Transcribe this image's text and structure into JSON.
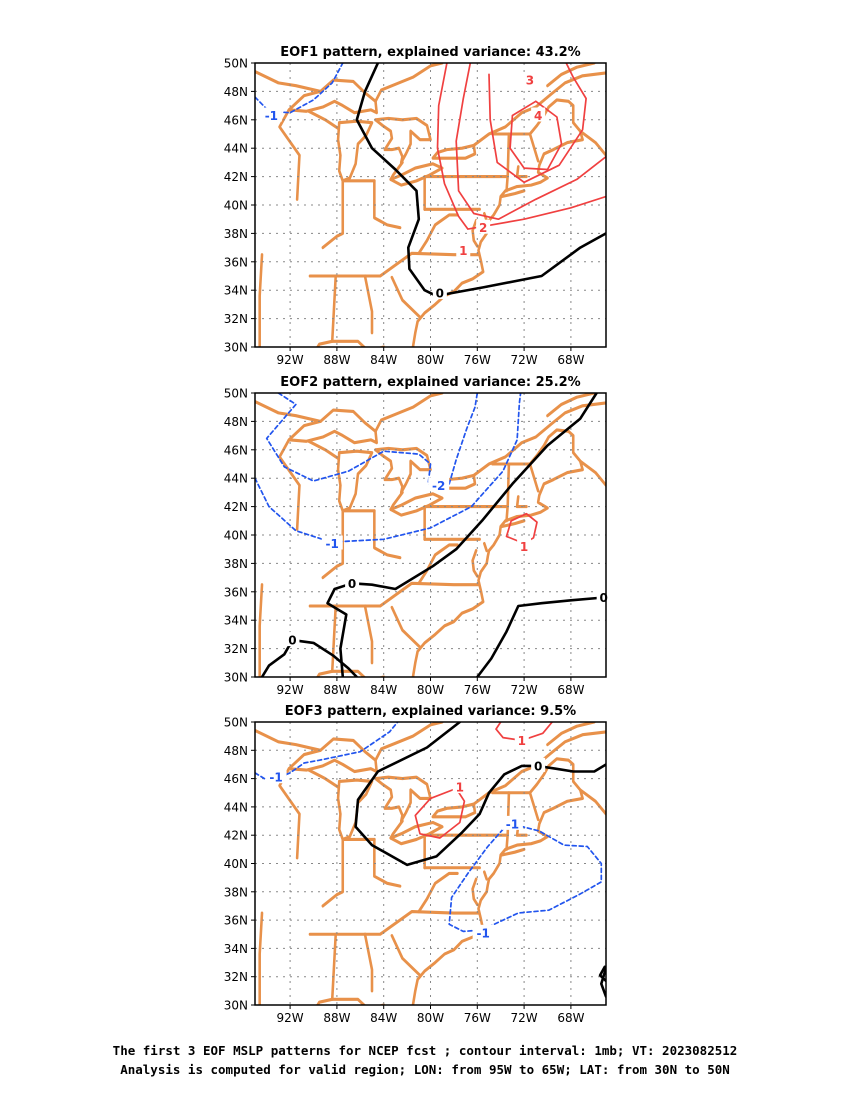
{
  "caption": {
    "line1": "The first 3 EOF MSLP patterns for NCEP fcst ; contour interval: 1mb; VT: 2023082512",
    "line2": "Analysis is computed for valid region; LON: from 95W to 65W; LAT: from 30N to 50N"
  },
  "colors": {
    "positive_contour": "#f04040",
    "negative_contour": "#2255ee",
    "zero_contour": "#000000",
    "coastline": "#e8914a",
    "grid": "#888888"
  },
  "chart_data": [
    {
      "type": "contour-map",
      "title": "EOF1 pattern, explained variance: 43.2%",
      "lon_range": [
        -95,
        -65
      ],
      "lat_range": [
        30,
        50
      ],
      "lon_ticks": [
        "92W",
        "88W",
        "84W",
        "80W",
        "76W",
        "72W",
        "68W"
      ],
      "lat_ticks": [
        "30N",
        "32N",
        "34N",
        "36N",
        "38N",
        "40N",
        "42N",
        "44N",
        "46N",
        "48N",
        "50N"
      ],
      "grid": true,
      "contour_labels": [
        {
          "value": "-1",
          "lon": -93.6,
          "lat": 46.3,
          "sign": "neg"
        },
        {
          "value": "0",
          "lon": -79.2,
          "lat": 33.8,
          "sign": "zero"
        },
        {
          "value": "1",
          "lon": -77.2,
          "lat": 36.8,
          "sign": "pos"
        },
        {
          "value": "2",
          "lon": -75.5,
          "lat": 38.4,
          "sign": "pos"
        },
        {
          "value": "3",
          "lon": -71.5,
          "lat": 48.8,
          "sign": "pos"
        },
        {
          "value": "4",
          "lon": -70.8,
          "lat": 46.3,
          "sign": "pos"
        }
      ],
      "contours": [
        {
          "sign": "neg",
          "points": [
            [
              -95,
              47.6
            ],
            [
              -93.8,
              46.6
            ],
            [
              -92,
              46.5
            ],
            [
              -90,
              47.4
            ],
            [
              -88.4,
              48.6
            ],
            [
              -87.5,
              50
            ]
          ]
        },
        {
          "sign": "zero",
          "points": [
            [
              -84.5,
              50
            ],
            [
              -85.6,
              48
            ],
            [
              -86.3,
              46
            ],
            [
              -85,
              44
            ],
            [
              -83,
              42.5
            ],
            [
              -81.2,
              41
            ],
            [
              -81,
              39
            ],
            [
              -81.9,
              37
            ],
            [
              -81.8,
              35.5
            ],
            [
              -80.5,
              34
            ],
            [
              -79.5,
              33.6
            ],
            [
              -75.5,
              34.2
            ],
            [
              -70.5,
              35
            ],
            [
              -67.2,
              37
            ],
            [
              -65,
              38
            ]
          ]
        },
        {
          "sign": "pos",
          "points": [
            [
              -78.6,
              50
            ],
            [
              -79.3,
              47
            ],
            [
              -79.4,
              44
            ],
            [
              -78.8,
              41.5
            ],
            [
              -77.6,
              39.2
            ],
            [
              -76.8,
              38.3
            ],
            [
              -72,
              39
            ],
            [
              -68,
              39.8
            ],
            [
              -65,
              40.6
            ]
          ]
        },
        {
          "sign": "pos",
          "points": [
            [
              -76.6,
              50
            ],
            [
              -77.2,
              47.5
            ],
            [
              -77.8,
              44.5
            ],
            [
              -77.6,
              41
            ],
            [
              -76.3,
              39.4
            ],
            [
              -74.2,
              39
            ],
            [
              -71,
              40.4
            ],
            [
              -67.5,
              41.8
            ],
            [
              -65,
              43.4
            ]
          ]
        },
        {
          "sign": "pos",
          "points": [
            [
              -75,
              49.2
            ],
            [
              -74.9,
              46
            ],
            [
              -74.3,
              43
            ],
            [
              -72,
              41.6
            ],
            [
              -69,
              42.8
            ],
            [
              -67,
              45.3
            ],
            [
              -66.7,
              47.5
            ],
            [
              -67.8,
              49
            ],
            [
              -68.4,
              50
            ]
          ]
        },
        {
          "sign": "pos",
          "points": [
            [
              -71,
              47.3
            ],
            [
              -73,
              46.3
            ],
            [
              -73.2,
              44
            ],
            [
              -72,
              42.6
            ],
            [
              -70,
              42.5
            ],
            [
              -68.8,
              44.3
            ],
            [
              -69.2,
              46.2
            ],
            [
              -71,
              47.3
            ]
          ]
        }
      ]
    },
    {
      "type": "contour-map",
      "title": "EOF2 pattern, explained variance: 25.2%",
      "lon_range": [
        -95,
        -65
      ],
      "lat_range": [
        30,
        50
      ],
      "lon_ticks": [
        "92W",
        "88W",
        "84W",
        "80W",
        "76W",
        "72W",
        "68W"
      ],
      "lat_ticks": [
        "30N",
        "32N",
        "34N",
        "36N",
        "38N",
        "40N",
        "42N",
        "44N",
        "46N",
        "48N",
        "50N"
      ],
      "grid": true,
      "contour_labels": [
        {
          "value": "-2",
          "lon": -79.3,
          "lat": 43.5,
          "sign": "neg"
        },
        {
          "value": "-1",
          "lon": -88.4,
          "lat": 39.4,
          "sign": "neg"
        },
        {
          "value": "0",
          "lon": -86.7,
          "lat": 36.6,
          "sign": "zero"
        },
        {
          "value": "0",
          "lon": -91.8,
          "lat": 32.6,
          "sign": "zero"
        },
        {
          "value": "0",
          "lon": -65.2,
          "lat": 35.6,
          "sign": "zero"
        },
        {
          "value": "1",
          "lon": -72,
          "lat": 39.2,
          "sign": "pos"
        }
      ],
      "contours": [
        {
          "sign": "neg",
          "points": [
            [
              -93,
              50
            ],
            [
              -91.5,
              49.2
            ],
            [
              -94,
              46.8
            ],
            [
              -92.5,
              44.8
            ],
            [
              -90,
              43.8
            ],
            [
              -87,
              44.5
            ],
            [
              -84,
              45.9
            ],
            [
              -81,
              45.7
            ],
            [
              -80,
              45
            ],
            [
              -80.2,
              43.6
            ],
            [
              -79.6,
              43.4
            ]
          ]
        },
        {
          "sign": "neg",
          "points": [
            [
              -79.6,
              43.4
            ],
            [
              -78.4,
              43.6
            ],
            [
              -77.8,
              45.3
            ],
            [
              -76.9,
              47.5
            ],
            [
              -76.2,
              49
            ],
            [
              -76,
              50
            ]
          ]
        },
        {
          "sign": "neg",
          "points": [
            [
              -95,
              44
            ],
            [
              -93.8,
              42
            ],
            [
              -91.5,
              40.3
            ],
            [
              -88.5,
              39.5
            ],
            [
              -84,
              39.7
            ],
            [
              -80,
              40.5
            ],
            [
              -76.5,
              42
            ],
            [
              -73.8,
              44.5
            ],
            [
              -72.6,
              46.7
            ],
            [
              -72.4,
              49.3
            ],
            [
              -72.3,
              50
            ]
          ]
        },
        {
          "sign": "zero",
          "points": [
            [
              -94.4,
              30
            ],
            [
              -93.8,
              30.8
            ],
            [
              -92.5,
              31.6
            ],
            [
              -91.8,
              32.6
            ],
            [
              -90,
              32.4
            ],
            [
              -88.3,
              31.5
            ],
            [
              -87,
              30.6
            ],
            [
              -86.3,
              30
            ]
          ]
        },
        {
          "sign": "zero",
          "points": [
            [
              -87.5,
              30
            ],
            [
              -87.7,
              32
            ],
            [
              -87.2,
              34.4
            ],
            [
              -88.8,
              35.2
            ],
            [
              -88.2,
              36.2
            ],
            [
              -86.7,
              36.6
            ],
            [
              -85,
              36.5
            ],
            [
              -83,
              36.2
            ],
            [
              -79.8,
              37.8
            ],
            [
              -77.8,
              39
            ],
            [
              -75.6,
              41
            ],
            [
              -73,
              43.6
            ],
            [
              -70,
              46.3
            ],
            [
              -67.2,
              48.2
            ],
            [
              -65.8,
              50
            ]
          ]
        },
        {
          "sign": "zero",
          "points": [
            [
              -76,
              30
            ],
            [
              -74.8,
              31.3
            ],
            [
              -73.5,
              33.2
            ],
            [
              -72.5,
              35
            ],
            [
              -70.5,
              35.2
            ],
            [
              -68,
              35.4
            ],
            [
              -65.2,
              35.6
            ],
            [
              -65,
              35.6
            ]
          ]
        },
        {
          "sign": "pos",
          "points": [
            [
              -72,
              39.4
            ],
            [
              -73.5,
              39.9
            ],
            [
              -73.1,
              41
            ],
            [
              -71.8,
              41.5
            ],
            [
              -70.9,
              40.9
            ],
            [
              -71.2,
              39.8
            ],
            [
              -72,
              39.4
            ]
          ]
        }
      ]
    },
    {
      "type": "contour-map",
      "title": "EOF3 pattern, explained variance: 9.5%",
      "lon_range": [
        -95,
        -65
      ],
      "lat_range": [
        30,
        50
      ],
      "lon_ticks": [
        "92W",
        "88W",
        "84W",
        "80W",
        "76W",
        "72W",
        "68W"
      ],
      "lat_ticks": [
        "30N",
        "32N",
        "34N",
        "36N",
        "38N",
        "40N",
        "42N",
        "44N",
        "46N",
        "48N",
        "50N"
      ],
      "grid": true,
      "contour_labels": [
        {
          "value": "-1",
          "lon": -93.2,
          "lat": 46.1,
          "sign": "neg"
        },
        {
          "value": "-1",
          "lon": -73,
          "lat": 42.8,
          "sign": "neg"
        },
        {
          "value": "-1",
          "lon": -75.5,
          "lat": 35.1,
          "sign": "neg"
        },
        {
          "value": "1",
          "lon": -77.5,
          "lat": 45.4,
          "sign": "pos"
        },
        {
          "value": "1",
          "lon": -72.2,
          "lat": 48.7,
          "sign": "pos"
        },
        {
          "value": "0",
          "lon": -70.8,
          "lat": 46.9,
          "sign": "zero"
        }
      ],
      "contours": [
        {
          "sign": "neg",
          "points": [
            [
              -95,
              46.4
            ],
            [
              -93.8,
              45.8
            ],
            [
              -92,
              46.4
            ],
            [
              -90.8,
              47.1
            ],
            [
              -89.5,
              47.3
            ],
            [
              -86,
              47.9
            ],
            [
              -83.5,
              49.3
            ],
            [
              -82.8,
              50
            ]
          ]
        },
        {
          "sign": "neg",
          "points": [
            [
              -73.4,
              42.8
            ],
            [
              -75.1,
              41.2
            ],
            [
              -76.8,
              39.3
            ],
            [
              -78.2,
              37.6
            ],
            [
              -78.4,
              35.7
            ],
            [
              -77.2,
              35.2
            ],
            [
              -75.6,
              35.3
            ],
            [
              -72.5,
              36.5
            ],
            [
              -69.9,
              36.7
            ],
            [
              -67.3,
              37.8
            ],
            [
              -65.4,
              38.7
            ],
            [
              -65.4,
              40
            ],
            [
              -66.6,
              41.2
            ],
            [
              -68.6,
              41.3
            ],
            [
              -70.7,
              42.3
            ],
            [
              -72.6,
              42.7
            ],
            [
              -73.4,
              42.8
            ]
          ]
        },
        {
          "sign": "zero",
          "points": [
            [
              -77.5,
              50
            ],
            [
              -80.3,
              48.2
            ],
            [
              -84.5,
              46.5
            ],
            [
              -86.2,
              44.5
            ],
            [
              -86.4,
              42.6
            ],
            [
              -85,
              41.3
            ],
            [
              -82,
              39.9
            ],
            [
              -79.5,
              40.5
            ],
            [
              -77.3,
              42.2
            ],
            [
              -75.8,
              43.5
            ],
            [
              -75,
              45
            ],
            [
              -73.7,
              46.3
            ],
            [
              -72.2,
              46.9
            ],
            [
              -70.9,
              46.9
            ],
            [
              -69.3,
              46.7
            ],
            [
              -67.8,
              46.5
            ],
            [
              -66,
              46.5
            ],
            [
              -65,
              47
            ]
          ]
        },
        {
          "sign": "pos",
          "points": [
            [
              -74,
              50
            ],
            [
              -74.4,
              49.5
            ],
            [
              -73.8,
              48.9
            ],
            [
              -72.2,
              48.7
            ],
            [
              -70.4,
              49.2
            ],
            [
              -69.6,
              50
            ]
          ]
        },
        {
          "sign": "pos",
          "points": [
            [
              -77.8,
              45.3
            ],
            [
              -80,
              44.6
            ],
            [
              -81.3,
              43.4
            ],
            [
              -80.9,
              42.1
            ],
            [
              -79.2,
              41.8
            ],
            [
              -77.5,
              42.9
            ],
            [
              -77.1,
              44.4
            ],
            [
              -77.8,
              45.3
            ]
          ]
        },
        {
          "sign": "zero",
          "points": [
            [
              -65,
              32.6
            ],
            [
              -65.4,
              31.5
            ],
            [
              -65,
              30.6
            ]
          ]
        },
        {
          "sign": "zero",
          "points": [
            [
              -65,
              31.7
            ],
            [
              -65.5,
              32.1
            ],
            [
              -65.1,
              32.7
            ]
          ]
        }
      ]
    }
  ]
}
